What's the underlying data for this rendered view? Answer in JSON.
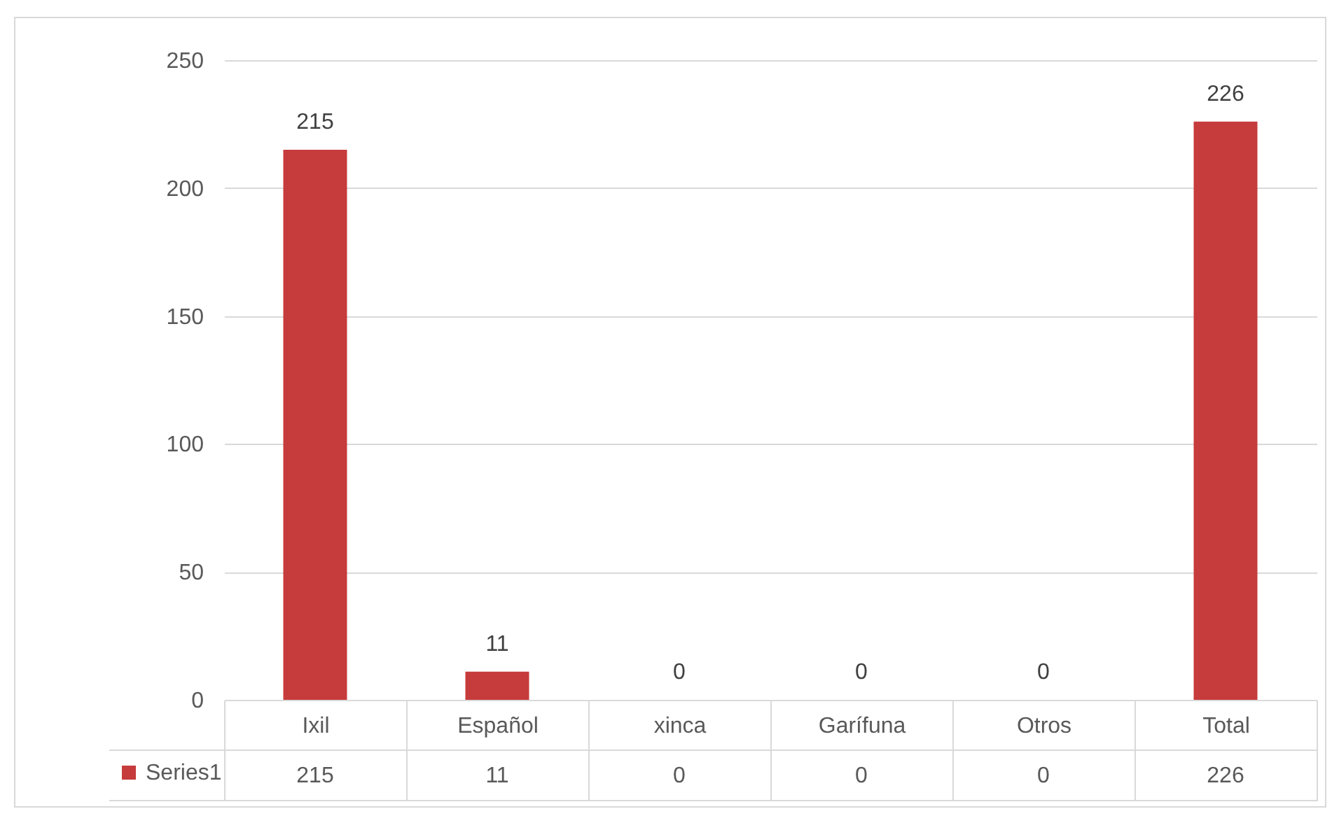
{
  "chart_data": {
    "type": "bar",
    "categories": [
      "Ixil",
      "Español",
      "xinca",
      "Garífuna",
      "Otros",
      "Total"
    ],
    "series": [
      {
        "name": "Series1",
        "color": "#c63b3b",
        "values": [
          215,
          11,
          0,
          0,
          0,
          226
        ]
      }
    ],
    "annotations": [
      {
        "text": "215",
        "x": "Ixil",
        "y": 215
      },
      {
        "text": "11",
        "x": "Español",
        "y": 11
      },
      {
        "text": "0",
        "x": "xinca",
        "y": 0
      },
      {
        "text": "0",
        "x": "Garífuna",
        "y": 0
      },
      {
        "text": "0",
        "x": "Otros",
        "y": 0
      },
      {
        "text": "226",
        "x": "Total",
        "y": 226
      }
    ],
    "ylim": [
      0,
      250
    ],
    "yticks": [
      0,
      50,
      100,
      150,
      200,
      250
    ],
    "grid": "y",
    "legend": "bottom left",
    "data_labels": true
  }
}
